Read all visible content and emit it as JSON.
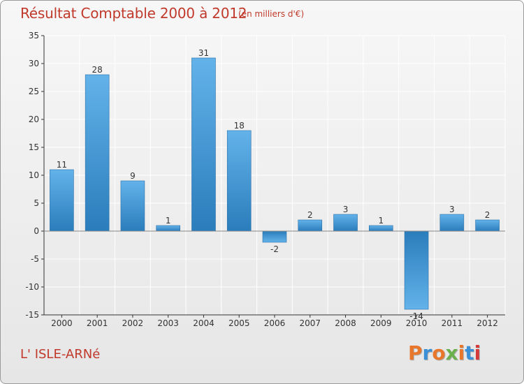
{
  "header": {
    "title": "Résultat Comptable 2000 à 2012",
    "subtitle": "(en milliers d'€)"
  },
  "footer": {
    "place": "L' ISLE-ARNé",
    "logo_text": "Proxiti"
  },
  "colors": {
    "bar_top": "#63b2ea",
    "bar_bottom": "#2a7dbb",
    "title": "#c0392b",
    "grid": "#ffffff",
    "axis": "#333333"
  },
  "chart_data": {
    "type": "bar",
    "title": "Résultat Comptable 2000 à 2012",
    "units": "(en milliers d'€)",
    "xlabel": "",
    "ylabel": "",
    "categories": [
      "2000",
      "2001",
      "2002",
      "2003",
      "2004",
      "2005",
      "2006",
      "2007",
      "2008",
      "2009",
      "2010",
      "2011",
      "2012"
    ],
    "values": [
      11,
      28,
      9,
      1,
      31,
      18,
      -2,
      2,
      3,
      1,
      -14,
      3,
      2
    ],
    "ylim": [
      -15,
      35
    ],
    "yticks": [
      -15,
      -10,
      -5,
      0,
      5,
      10,
      15,
      20,
      25,
      30,
      35
    ],
    "grid": true
  }
}
